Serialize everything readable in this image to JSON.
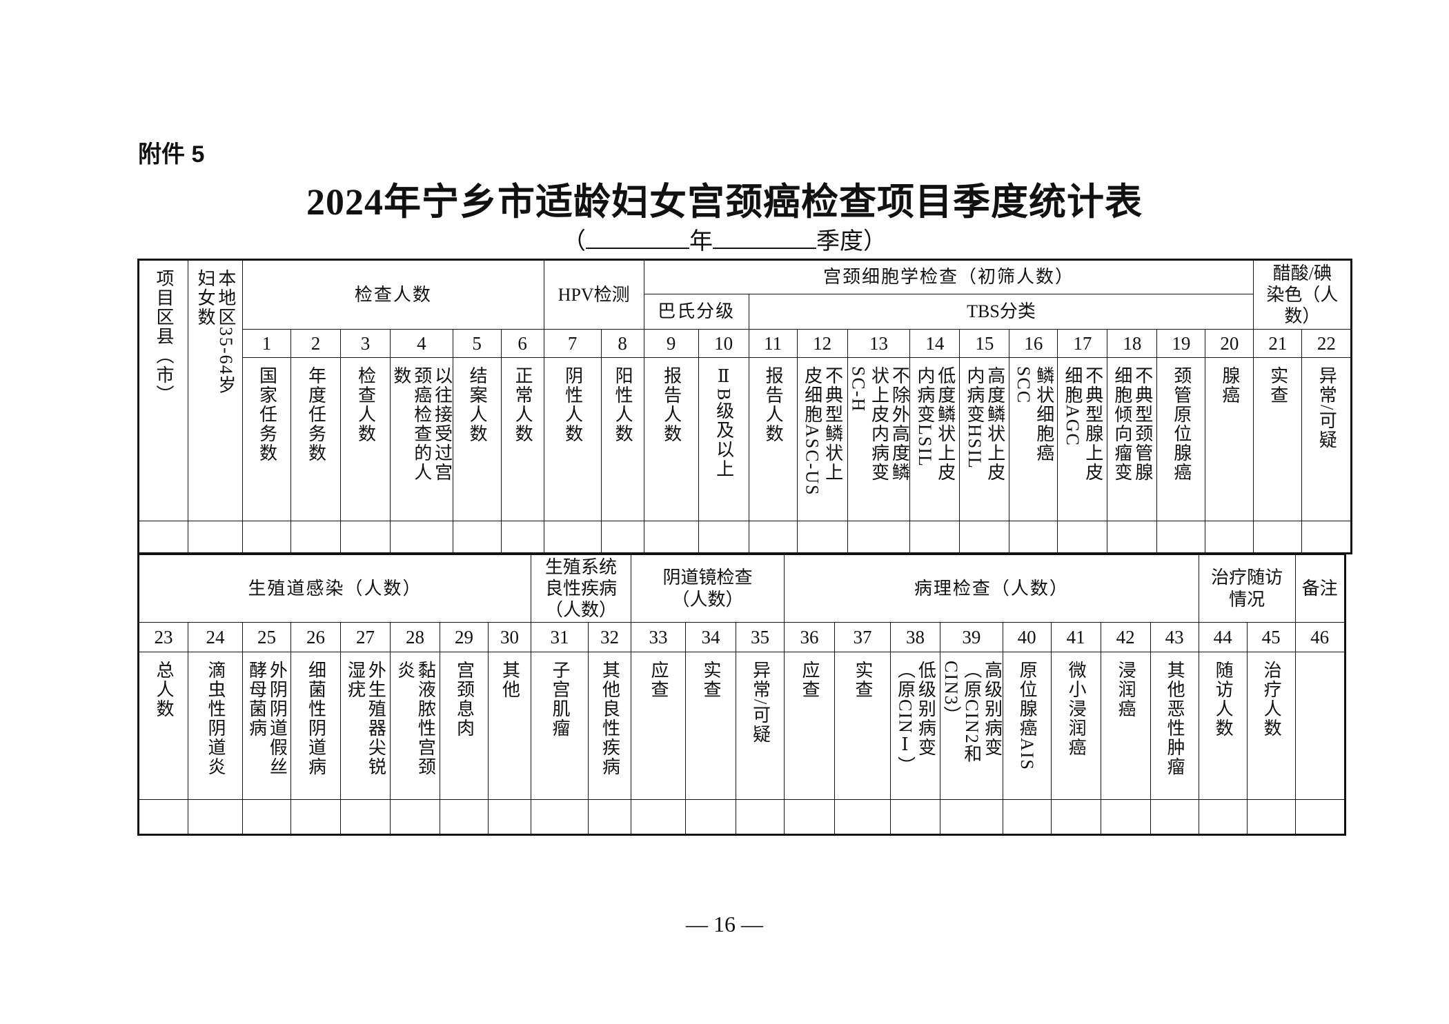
{
  "attachment_label": "附件 5",
  "title": "2024年宁乡市适龄妇女宫颈癌检查项目季度统计表",
  "subtitle": {
    "open": "（",
    "year_suffix": "年",
    "quarter_suffix": "季度",
    "close": "）"
  },
  "page_number": "— 16 —",
  "top_table": {
    "row_header": "项目区县（市）",
    "population_header": "本地区35-64岁妇女数",
    "groups": {
      "exam": "检查人数",
      "hpv": "HPV检测",
      "cytology": "宫颈细胞学检查（初筛人数）",
      "pap": "巴氏分级",
      "tbs": "TBS分类",
      "via": "醋酸/碘染色（人数）"
    },
    "columns": [
      {
        "num": "1",
        "label": "国家任务数"
      },
      {
        "num": "2",
        "label": "年度任务数"
      },
      {
        "num": "3",
        "label": "检查人数"
      },
      {
        "num": "4",
        "label": "以往接受过宫颈癌检查的人数"
      },
      {
        "num": "5",
        "label": "结案人数"
      },
      {
        "num": "6",
        "label": "正常人数"
      },
      {
        "num": "7",
        "label": "阴性人数"
      },
      {
        "num": "8",
        "label": "阳性人数"
      },
      {
        "num": "9",
        "label": "报告人数"
      },
      {
        "num": "10",
        "label": "ⅡB级及以上"
      },
      {
        "num": "11",
        "label": "报告人数"
      },
      {
        "num": "12",
        "label": "不典型鳞状上皮细胞ASC-US"
      },
      {
        "num": "13",
        "label": "不除外高度鳞状上皮内病变SC-H"
      },
      {
        "num": "14",
        "label": "低度鳞状上皮内病变LSIL"
      },
      {
        "num": "15",
        "label": "高度鳞状上皮内病变HSIL"
      },
      {
        "num": "16",
        "label": "鳞状细胞癌SCC"
      },
      {
        "num": "17",
        "label": "不典型腺上皮细胞AGC"
      },
      {
        "num": "18",
        "label": "不典型颈管腺细胞倾向瘤变"
      },
      {
        "num": "19",
        "label": "颈管原位腺癌"
      },
      {
        "num": "20",
        "label": "腺癌"
      },
      {
        "num": "21",
        "label": "实查"
      },
      {
        "num": "22",
        "label": "异常/可疑"
      }
    ]
  },
  "bottom_table": {
    "groups": {
      "infection": "生殖道感染（人数）",
      "benign": "生殖系统良性疾病（人数）",
      "colposcopy": "阴道镜检查（人数）",
      "pathology": "病理检查（人数）",
      "followup": "治疗随访情况",
      "remarks": "备注"
    },
    "columns": [
      {
        "num": "23",
        "label": "总人数"
      },
      {
        "num": "24",
        "label": "滴虫性阴道炎"
      },
      {
        "num": "25",
        "label": "外阴阴道假丝酵母菌病"
      },
      {
        "num": "26",
        "label": "细菌性阴道病"
      },
      {
        "num": "27",
        "label": "外生殖器尖锐湿疣"
      },
      {
        "num": "28",
        "label": "黏液脓性宫颈炎"
      },
      {
        "num": "29",
        "label": "宫颈息肉"
      },
      {
        "num": "30",
        "label": "其他"
      },
      {
        "num": "31",
        "label": "子宫肌瘤"
      },
      {
        "num": "32",
        "label": "其他良性疾病"
      },
      {
        "num": "33",
        "label": "应查"
      },
      {
        "num": "34",
        "label": "实查"
      },
      {
        "num": "35",
        "label": "异常/可疑"
      },
      {
        "num": "36",
        "label": "应查"
      },
      {
        "num": "37",
        "label": "实查"
      },
      {
        "num": "38",
        "label": "低级别病变（原CINⅠ）"
      },
      {
        "num": "39",
        "label": "高级别病变（原CIN2和CIN3）"
      },
      {
        "num": "40",
        "label": "原位腺癌AIS"
      },
      {
        "num": "41",
        "label": "微小浸润癌"
      },
      {
        "num": "42",
        "label": "浸润癌"
      },
      {
        "num": "43",
        "label": "其他恶性肿瘤"
      },
      {
        "num": "44",
        "label": "随访人数"
      },
      {
        "num": "45",
        "label": "治疗人数"
      },
      {
        "num": "46",
        "label": ""
      }
    ]
  }
}
